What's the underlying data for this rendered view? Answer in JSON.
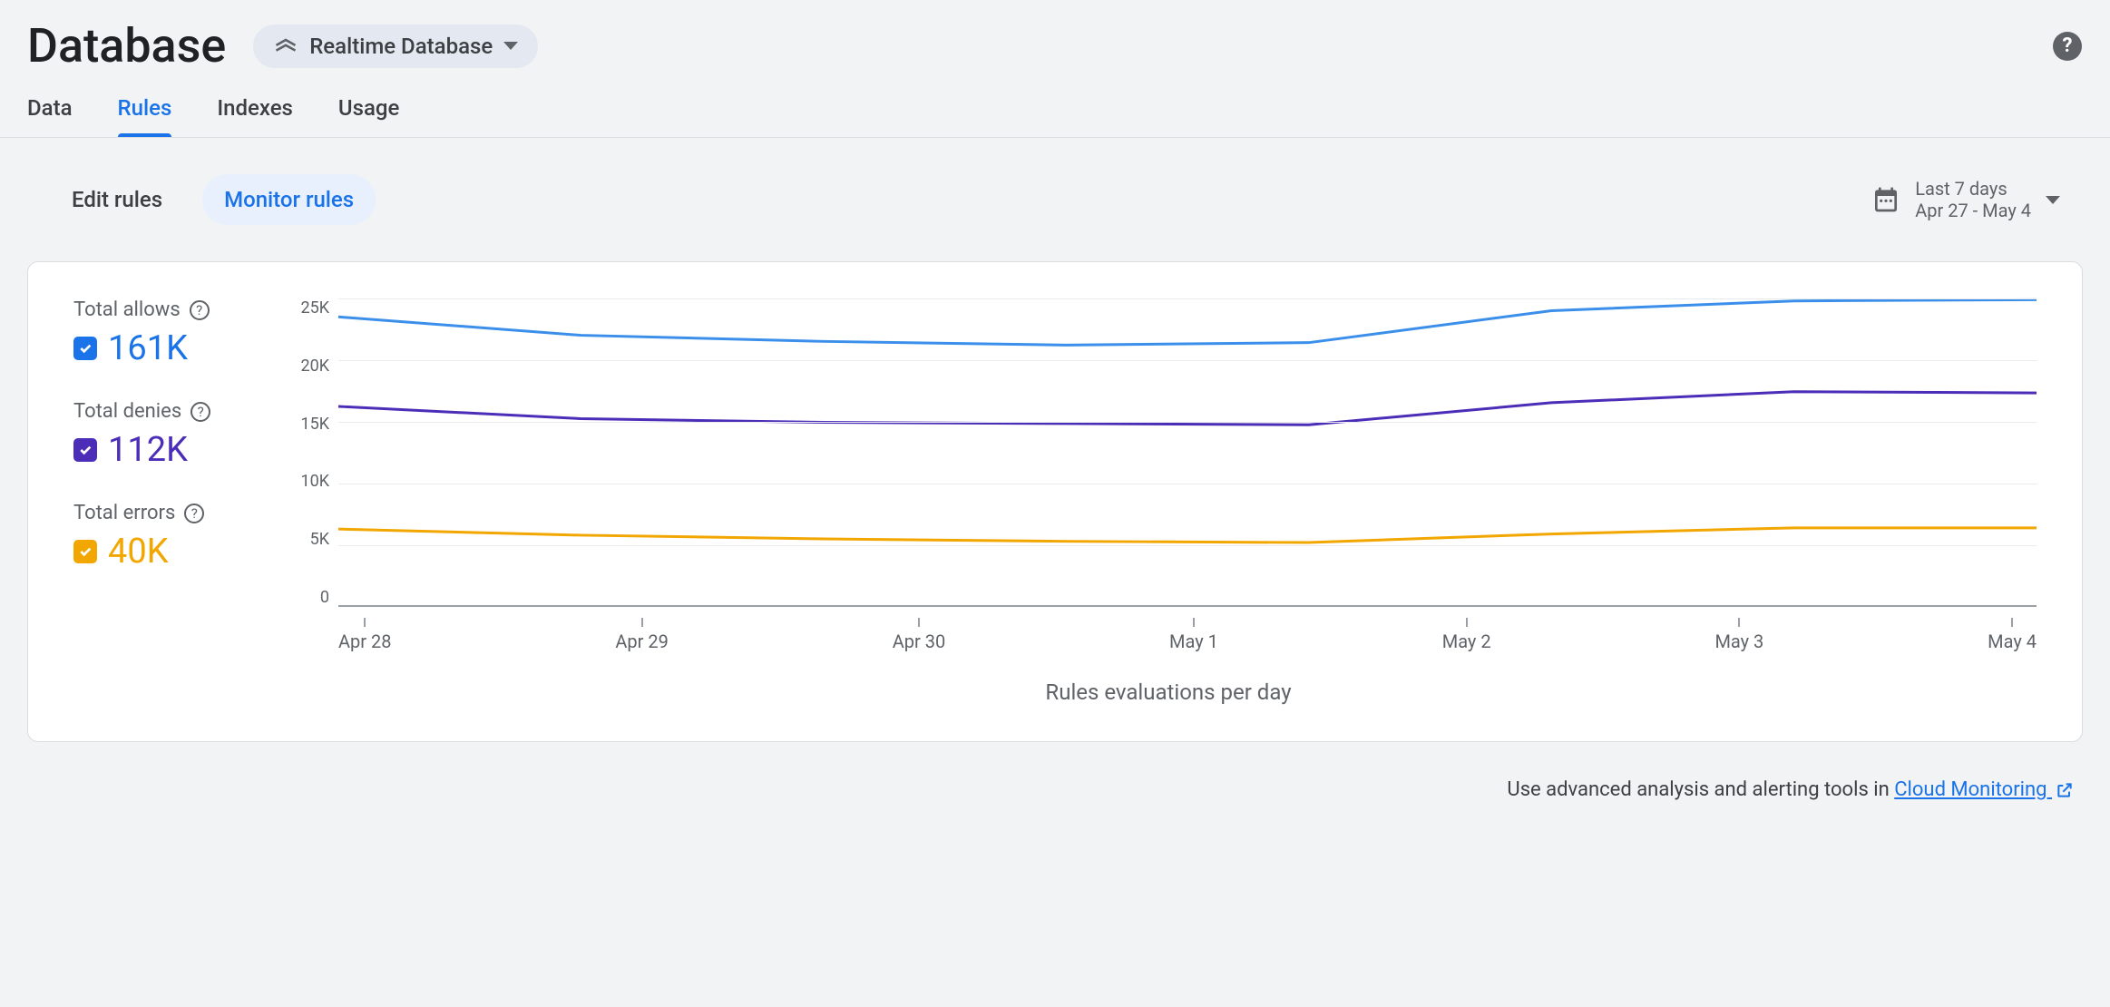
{
  "header": {
    "title": "Database",
    "selector_label": "Realtime Database"
  },
  "tabs": [
    {
      "id": "data",
      "label": "Data",
      "active": false
    },
    {
      "id": "rules",
      "label": "Rules",
      "active": true
    },
    {
      "id": "indexes",
      "label": "Indexes",
      "active": false
    },
    {
      "id": "usage",
      "label": "Usage",
      "active": false
    }
  ],
  "subtabs": [
    {
      "id": "edit",
      "label": "Edit rules",
      "active": false
    },
    {
      "id": "monitor",
      "label": "Monitor rules",
      "active": true
    }
  ],
  "date_range": {
    "label": "Last 7 days",
    "value": "Apr 27 - May 4"
  },
  "legend": [
    {
      "id": "allows",
      "label": "Total allows",
      "value": "161K",
      "color": "#1a73e8"
    },
    {
      "id": "denies",
      "label": "Total denies",
      "value": "112K",
      "color": "#4b2db8"
    },
    {
      "id": "errors",
      "label": "Total errors",
      "value": "40K",
      "color": "#f2a600"
    }
  ],
  "chart": {
    "type": "line",
    "subtitle": "Rules evaluations per day",
    "x_categories": [
      "Apr 28",
      "Apr 29",
      "Apr 30",
      "May 1",
      "May 2",
      "May 3",
      "May 4"
    ],
    "ylim": [
      0,
      25000
    ],
    "ytick_step": 5000,
    "ytick_labels": [
      "25K",
      "20K",
      "15K",
      "10K",
      "5K",
      "0"
    ],
    "grid_color": "#e8eaed",
    "axis_color": "#9aa0a6",
    "background_color": "#ffffff",
    "line_width": 3,
    "series": [
      {
        "name": "allows",
        "color": "#3b8fea",
        "values": [
          23500,
          22000,
          21500,
          21200,
          21400,
          24000,
          24800,
          24900
        ]
      },
      {
        "name": "denies",
        "color": "#4b2db8",
        "values": [
          16200,
          15200,
          14900,
          14800,
          14700,
          16500,
          17400,
          17300
        ]
      },
      {
        "name": "errors",
        "color": "#f2a600",
        "values": [
          6200,
          5700,
          5400,
          5200,
          5100,
          5800,
          6300,
          6300
        ]
      }
    ]
  },
  "footer": {
    "prefix": "Use advanced analysis and alerting tools in ",
    "link_label": "Cloud Monitoring"
  }
}
